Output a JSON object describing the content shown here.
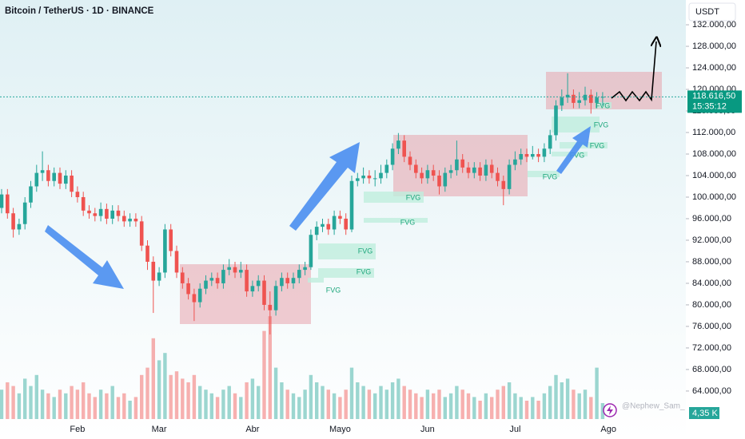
{
  "chart_data": {
    "type": "candlestick",
    "title": "Bitcoin / TetherUS · 1D · BINANCE",
    "currency": "USDT",
    "watermark": "@Nephew_Sam_",
    "up_color": "#26a69a",
    "down_color": "#ef5350",
    "categories": [
      null,
      null,
      null,
      null,
      null,
      null,
      null,
      null,
      null,
      null,
      null,
      null,
      null,
      "Feb",
      null,
      null,
      null,
      null,
      null,
      null,
      null,
      null,
      null,
      null,
      null,
      null,
      null,
      "Mar",
      null,
      null,
      null,
      null,
      null,
      null,
      null,
      null,
      null,
      null,
      null,
      null,
      null,
      null,
      null,
      "Abr",
      null,
      null,
      null,
      null,
      null,
      null,
      null,
      null,
      null,
      null,
      null,
      null,
      null,
      null,
      "Mayo",
      null,
      null,
      null,
      null,
      null,
      null,
      null,
      null,
      null,
      null,
      null,
      null,
      null,
      null,
      "Jun",
      null,
      null,
      null,
      null,
      null,
      null,
      null,
      null,
      null,
      null,
      null,
      null,
      null,
      null,
      "Jul",
      null,
      null,
      null,
      null,
      null,
      null,
      null,
      null,
      null,
      null,
      null,
      null,
      null,
      null,
      null,
      "Ago"
    ],
    "open": [
      98000,
      100500,
      97000,
      94000,
      95000,
      99000,
      102000,
      104500,
      105000,
      103000,
      104500,
      102500,
      104000,
      101000,
      100000,
      97500,
      97000,
      96500,
      97800,
      96000,
      97500,
      96500,
      95500,
      96000,
      95500,
      91000,
      88000,
      84500,
      86000,
      94000,
      90000,
      86000,
      84000,
      82000,
      80500,
      83000,
      84500,
      85000,
      84000,
      86500,
      87000,
      86000,
      86500,
      82500,
      83500,
      84500,
      80000,
      79000,
      83500,
      85000,
      84000,
      85000,
      86500,
      87000,
      93000,
      94500,
      95000,
      94000,
      96500,
      96000,
      94000,
      103000,
      103500,
      104000,
      103500,
      103500,
      104500,
      106000,
      109000,
      110500,
      107500,
      106000,
      104500,
      103500,
      105000,
      104000,
      102000,
      104500,
      105000,
      107000,
      105500,
      104500,
      105500,
      104000,
      106000,
      104500,
      103000,
      101500,
      106000,
      107000,
      108000,
      107500,
      108000,
      107500,
      109000,
      111500,
      117000,
      118500,
      119000,
      117500,
      118000,
      119000,
      117500,
      118500,
      null
    ],
    "high": [
      101500,
      101500,
      98000,
      96000,
      100000,
      103000,
      106000,
      108500,
      106000,
      105500,
      105500,
      105000,
      105000,
      102000,
      101000,
      98500,
      98000,
      99000,
      98800,
      98500,
      98500,
      97500,
      97000,
      97000,
      96500,
      92000,
      89000,
      87000,
      95000,
      95000,
      91000,
      87000,
      85000,
      83000,
      84000,
      85500,
      86000,
      86000,
      87500,
      88500,
      88000,
      88000,
      87500,
      84500,
      85500,
      85500,
      82500,
      84500,
      86000,
      86000,
      86000,
      87500,
      88000,
      94000,
      95500,
      96000,
      96000,
      97500,
      97500,
      97000,
      104000,
      104500,
      105500,
      105000,
      105000,
      106000,
      107000,
      110000,
      111900,
      111500,
      108500,
      107000,
      105500,
      106000,
      106000,
      105000,
      105500,
      106000,
      110500,
      108000,
      106500,
      106500,
      106500,
      107000,
      107000,
      105500,
      104000,
      107000,
      108500,
      109000,
      109000,
      109500,
      109000,
      110000,
      112500,
      118000,
      120000,
      123000,
      120000,
      119500,
      120500,
      120000,
      119500,
      119500,
      null
    ],
    "low": [
      97000,
      96000,
      92500,
      93000,
      94000,
      98000,
      101000,
      103000,
      102000,
      102000,
      101500,
      101500,
      100000,
      99000,
      96500,
      96000,
      95500,
      95500,
      95000,
      95000,
      95500,
      94500,
      94500,
      94500,
      90000,
      86500,
      78500,
      83500,
      85000,
      89000,
      85000,
      83000,
      81000,
      77000,
      79500,
      82000,
      83500,
      83000,
      83000,
      85500,
      85000,
      85000,
      81500,
      81500,
      82500,
      79000,
      74500,
      78000,
      82500,
      83000,
      83000,
      84000,
      85500,
      86500,
      92000,
      93500,
      93000,
      93000,
      95000,
      93000,
      93500,
      102000,
      102500,
      102500,
      102000,
      102500,
      103500,
      105000,
      108000,
      106500,
      105000,
      103500,
      102500,
      102500,
      103000,
      100500,
      101000,
      103500,
      104000,
      104500,
      103500,
      103500,
      103000,
      103000,
      103500,
      102000,
      98500,
      100500,
      105000,
      106000,
      106500,
      107000,
      106500,
      106500,
      108000,
      110500,
      116000,
      117500,
      116500,
      116500,
      117000,
      115500,
      116500,
      117000,
      null
    ],
    "close": [
      100500,
      97000,
      94000,
      95000,
      99000,
      102000,
      104500,
      105000,
      103000,
      104500,
      102500,
      104000,
      101000,
      100000,
      97500,
      97000,
      96500,
      97800,
      96000,
      97500,
      96500,
      95500,
      96000,
      95500,
      91000,
      88000,
      84500,
      86000,
      94000,
      90000,
      86000,
      84000,
      82000,
      80500,
      83000,
      84500,
      85000,
      84000,
      86500,
      87000,
      86000,
      86500,
      82500,
      83500,
      84500,
      80000,
      79000,
      83500,
      85000,
      84000,
      85000,
      86500,
      87000,
      93000,
      94500,
      95000,
      94000,
      96500,
      96000,
      94000,
      103000,
      103500,
      104000,
      103500,
      103500,
      104500,
      106000,
      109000,
      110500,
      107500,
      106000,
      104500,
      103500,
      105000,
      104000,
      102000,
      104500,
      105000,
      107000,
      105500,
      104500,
      105500,
      104000,
      106000,
      104500,
      103000,
      101500,
      106000,
      107000,
      108000,
      107500,
      108000,
      107500,
      109000,
      111500,
      117000,
      118500,
      119000,
      117500,
      118000,
      119000,
      117500,
      118500,
      118616.5,
      null
    ],
    "volume": [
      8,
      10,
      9,
      7,
      11,
      9,
      12,
      8,
      7,
      6,
      8,
      7,
      9,
      8,
      10,
      7,
      6,
      8,
      7,
      9,
      6,
      7,
      5,
      6,
      12,
      14,
      22,
      16,
      18,
      12,
      13,
      11,
      10,
      12,
      9,
      8,
      7,
      6,
      8,
      9,
      7,
      6,
      10,
      11,
      9,
      24,
      28,
      14,
      10,
      8,
      7,
      6,
      8,
      12,
      10,
      9,
      8,
      7,
      6,
      8,
      14,
      10,
      9,
      8,
      7,
      9,
      8,
      10,
      11,
      9,
      8,
      7,
      6,
      8,
      7,
      8,
      6,
      7,
      9,
      8,
      7,
      6,
      5,
      7,
      6,
      8,
      9,
      10,
      7,
      6,
      5,
      6,
      5,
      7,
      9,
      12,
      10,
      11,
      8,
      7,
      8,
      6,
      14,
      4.35,
      null
    ],
    "volume_lim": [
      0,
      60
    ],
    "last_volume_label": "4,35 K",
    "ylim": [
      58800,
      136600
    ],
    "yticks": [
      {
        "value": 132000,
        "label": "132.000,00"
      },
      {
        "value": 128000,
        "label": "128.000,00"
      },
      {
        "value": 124000,
        "label": "124.000,00"
      },
      {
        "value": 120000,
        "label": "120.000,00"
      },
      {
        "value": 116000,
        "label": "116.000,00"
      },
      {
        "value": 112000,
        "label": "112.000,00"
      },
      {
        "value": 108000,
        "label": "108.000,00"
      },
      {
        "value": 104000,
        "label": "104.000,00"
      },
      {
        "value": 100000,
        "label": "100.000,00"
      },
      {
        "value": 96000,
        "label": "96.000,00"
      },
      {
        "value": 92000,
        "label": "92.000,00"
      },
      {
        "value": 88000,
        "label": "88.000,00"
      },
      {
        "value": 84000,
        "label": "84.000,00"
      },
      {
        "value": 80000,
        "label": "80.000,00"
      },
      {
        "value": 76000,
        "label": "76.000,00"
      },
      {
        "value": 72000,
        "label": "72.000,00"
      },
      {
        "value": 68000,
        "label": "68.000,00"
      },
      {
        "value": 64000,
        "label": "64.000,00"
      }
    ],
    "last_price": {
      "value": 118616.5,
      "label": "118.616,50"
    },
    "countdown": "15:35:12",
    "fvg_labels": [
      "FVG",
      "FVG",
      "FVG",
      "FVG",
      "FVG",
      "FVG",
      "FVG",
      "FVG",
      "FVG",
      "FVG"
    ]
  }
}
